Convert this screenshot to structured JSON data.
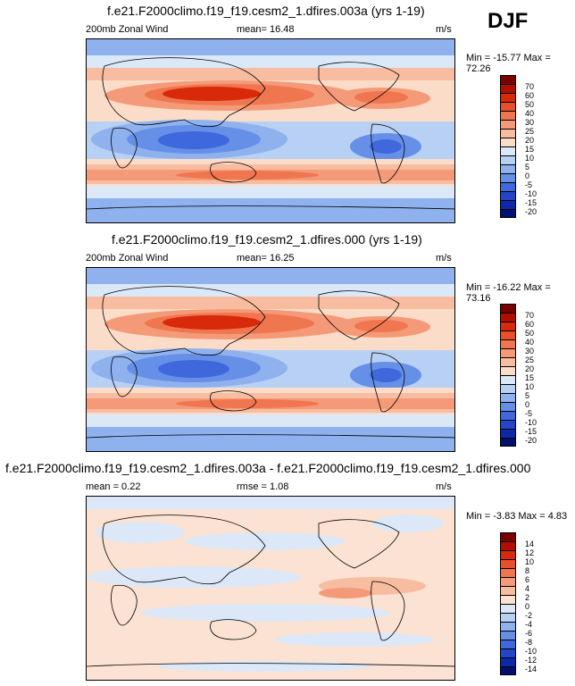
{
  "season": "DJF",
  "panels": [
    {
      "title": "f.e21.F2000climo.f19_f19.cesm2_1.dfires.003a (yrs 1-19)",
      "left_label": "200mb Zonal Wind",
      "mid_label": "mean=  16.48",
      "units": "m/s",
      "minmax": "Min = -15.77 Max =  72.26",
      "colorbar_labels": [
        "70",
        "60",
        "50",
        "40",
        "30",
        "25",
        "20",
        "15",
        "10",
        "5",
        "0",
        "-5",
        "-10",
        "-15",
        "-20"
      ]
    },
    {
      "title": "f.e21.F2000climo.f19_f19.cesm2_1.dfires.000 (yrs 1-19)",
      "left_label": "200mb Zonal Wind",
      "mid_label": "mean=  16.25",
      "units": "m/s",
      "minmax": "Min = -16.22 Max =  73.16",
      "colorbar_labels": [
        "70",
        "60",
        "50",
        "40",
        "30",
        "25",
        "20",
        "15",
        "10",
        "5",
        "0",
        "-5",
        "-10",
        "-15",
        "-20"
      ]
    },
    {
      "title": "f.e21.F2000climo.f19_f19.cesm2_1.dfires.003a - f.e21.F2000climo.f19_f19.cesm2_1.dfires.000",
      "left_label": "mean =   0.22",
      "mid_label": "rmse =   1.08",
      "units": "m/s",
      "minmax": "Min =  -3.83 Max =   4.83",
      "colorbar_labels": [
        "14",
        "12",
        "10",
        "8",
        "6",
        "4",
        "2",
        "0",
        "-2",
        "-4",
        "-6",
        "-8",
        "-10",
        "-12",
        "-14"
      ]
    }
  ],
  "colors": {
    "warm": [
      "#7a0000",
      "#b00f00",
      "#d8290a",
      "#e8502a",
      "#f07650",
      "#f59a78",
      "#f8bca0",
      "#fbdcc8"
    ],
    "cool": [
      "#dbe8f8",
      "#b8d0f4",
      "#8fb2ee",
      "#6690e8",
      "#3f68dc",
      "#2346c8",
      "#0f28a8",
      "#00106e"
    ],
    "diff": [
      "#7a0000",
      "#b00f00",
      "#d8290a",
      "#e8502a",
      "#f07650",
      "#f59a78",
      "#f8bca0",
      "#fbe2d2",
      "#dce8f8",
      "#b8d0f4",
      "#8fb2ee",
      "#6690e8",
      "#3f68dc",
      "#2346c8",
      "#0f28a8",
      "#00106e"
    ]
  }
}
